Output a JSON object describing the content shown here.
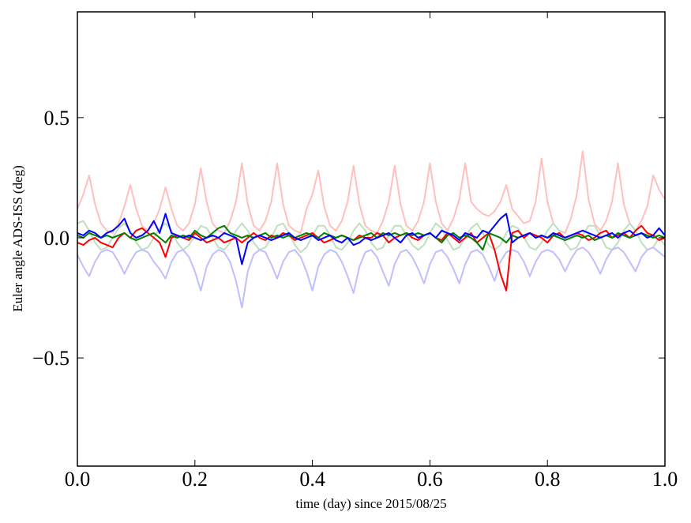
{
  "chart_data": {
    "type": "line",
    "xlabel": "time (day) since 2015/08/25",
    "ylabel": "Euler angle ADS-ISS (deg)",
    "xlim": [
      0,
      1
    ],
    "ylim": [
      -0.95,
      0.94
    ],
    "xticks": [
      {
        "value": 0,
        "label": "0.0"
      },
      {
        "value": 0.2,
        "label": "0.2"
      },
      {
        "value": 0.4,
        "label": "0.4"
      },
      {
        "value": 0.6,
        "label": "0.6"
      },
      {
        "value": 0.8,
        "label": "0.8"
      },
      {
        "value": 1,
        "label": "1.0"
      }
    ],
    "yticks": [
      {
        "value": -0.5,
        "label": "−0.5"
      },
      {
        "value": 0,
        "label": "0.0"
      },
      0.5
    ],
    "x": [
      0,
      0.01,
      0.02,
      0.03,
      0.04,
      0.05,
      0.06,
      0.07,
      0.08,
      0.09,
      0.1,
      0.11,
      0.12,
      0.13,
      0.14,
      0.15,
      0.16,
      0.17,
      0.18,
      0.19,
      0.2,
      0.21,
      0.22,
      0.23,
      0.24,
      0.25,
      0.26,
      0.27,
      0.28,
      0.29,
      0.3,
      0.31,
      0.32,
      0.33,
      0.34,
      0.35,
      0.36,
      0.37,
      0.38,
      0.39,
      0.4,
      0.41,
      0.42,
      0.43,
      0.44,
      0.45,
      0.46,
      0.47,
      0.48,
      0.49,
      0.5,
      0.51,
      0.52,
      0.53,
      0.54,
      0.55,
      0.56,
      0.57,
      0.58,
      0.59,
      0.6,
      0.61,
      0.62,
      0.63,
      0.64,
      0.65,
      0.66,
      0.67,
      0.68,
      0.69,
      0.7,
      0.71,
      0.72,
      0.73,
      0.74,
      0.75,
      0.76,
      0.77,
      0.78,
      0.79,
      0.8,
      0.81,
      0.82,
      0.83,
      0.84,
      0.85,
      0.86,
      0.87,
      0.88,
      0.89,
      0.9,
      0.91,
      0.92,
      0.93,
      0.94,
      0.95,
      0.96,
      0.97,
      0.98,
      0.99,
      1
    ],
    "series": [
      {
        "color": "#ffbfbf",
        "values": [
          0.12,
          0.18,
          0.26,
          0.14,
          0.06,
          0.03,
          0.02,
          0.06,
          0.13,
          0.22,
          0.12,
          0.05,
          0.03,
          0.06,
          0.12,
          0.21,
          0.12,
          0.05,
          0.03,
          0.06,
          0.14,
          0.29,
          0.15,
          0.06,
          0.03,
          0.02,
          0.07,
          0.15,
          0.31,
          0.14,
          0.05,
          0.03,
          0.07,
          0.15,
          0.31,
          0.14,
          0.05,
          0.03,
          0.02,
          0.12,
          0.18,
          0.28,
          0.13,
          0.05,
          0.03,
          0.07,
          0.15,
          0.3,
          0.14,
          0.05,
          0.03,
          0.02,
          0.07,
          0.15,
          0.3,
          0.14,
          0.05,
          0.03,
          0.07,
          0.15,
          0.31,
          0.15,
          0.06,
          0.03,
          0.08,
          0.16,
          0.31,
          0.15,
          0.12,
          0.1,
          0.09,
          0.11,
          0.15,
          0.22,
          0.12,
          0.09,
          0.06,
          0.07,
          0.15,
          0.33,
          0.15,
          0.06,
          0.03,
          0.02,
          0.08,
          0.18,
          0.36,
          0.16,
          0.06,
          0.03,
          0.07,
          0.15,
          0.31,
          0.14,
          0.06,
          0.03,
          0.07,
          0.13,
          0.26,
          0.2,
          0.16
        ]
      },
      {
        "color": "#bfdfbf",
        "values": [
          0.06,
          0.07,
          0.03,
          -0.02,
          -0.05,
          -0.04,
          0.0,
          0.04,
          0.06,
          0.03,
          -0.02,
          -0.05,
          -0.04,
          0.0,
          0.04,
          0.06,
          0.03,
          -0.02,
          -0.05,
          -0.03,
          0.01,
          0.05,
          0.04,
          0.0,
          -0.04,
          -0.05,
          -0.02,
          0.03,
          0.06,
          0.03,
          -0.02,
          -0.05,
          -0.04,
          0.0,
          0.05,
          0.06,
          0.02,
          -0.03,
          -0.06,
          -0.04,
          0.01,
          0.05,
          0.05,
          0.01,
          -0.04,
          -0.05,
          -0.02,
          0.03,
          0.06,
          0.03,
          -0.02,
          -0.05,
          -0.04,
          0.01,
          0.05,
          0.05,
          0.01,
          -0.03,
          -0.05,
          -0.03,
          0.02,
          0.06,
          0.04,
          -0.01,
          -0.05,
          -0.04,
          0.0,
          0.04,
          0.06,
          0.02,
          -0.03,
          -0.05,
          -0.03,
          0.02,
          0.05,
          0.04,
          0.0,
          -0.04,
          -0.05,
          -0.02,
          0.03,
          0.06,
          0.03,
          -0.02,
          -0.05,
          -0.04,
          0.01,
          0.05,
          0.05,
          0.01,
          -0.04,
          -0.05,
          -0.02,
          0.03,
          0.06,
          0.03,
          -0.02,
          -0.05,
          -0.04,
          0.0,
          -0.03
        ]
      },
      {
        "color": "#bfbfff",
        "values": [
          -0.07,
          -0.12,
          -0.16,
          -0.1,
          -0.06,
          -0.05,
          -0.06,
          -0.1,
          -0.15,
          -0.1,
          -0.06,
          -0.05,
          -0.06,
          -0.1,
          -0.13,
          -0.17,
          -0.1,
          -0.06,
          -0.05,
          -0.08,
          -0.14,
          -0.22,
          -0.12,
          -0.07,
          -0.05,
          -0.06,
          -0.1,
          -0.18,
          -0.29,
          -0.14,
          -0.07,
          -0.05,
          -0.06,
          -0.11,
          -0.17,
          -0.1,
          -0.06,
          -0.05,
          -0.08,
          -0.14,
          -0.22,
          -0.12,
          -0.07,
          -0.05,
          -0.06,
          -0.1,
          -0.16,
          -0.23,
          -0.12,
          -0.06,
          -0.05,
          -0.08,
          -0.14,
          -0.2,
          -0.11,
          -0.06,
          -0.05,
          -0.08,
          -0.13,
          -0.19,
          -0.11,
          -0.06,
          -0.05,
          -0.08,
          -0.13,
          -0.19,
          -0.11,
          -0.06,
          -0.05,
          -0.07,
          -0.12,
          -0.18,
          -0.1,
          -0.06,
          -0.05,
          -0.06,
          -0.1,
          -0.16,
          -0.1,
          -0.06,
          -0.05,
          -0.06,
          -0.09,
          -0.14,
          -0.09,
          -0.05,
          -0.04,
          -0.06,
          -0.1,
          -0.15,
          -0.09,
          -0.05,
          -0.04,
          -0.06,
          -0.1,
          -0.14,
          -0.08,
          -0.05,
          -0.04,
          -0.06,
          -0.08
        ]
      },
      {
        "color": "#ff0000",
        "values": [
          -0.02,
          -0.03,
          -0.01,
          0.0,
          -0.02,
          -0.03,
          -0.04,
          0.0,
          0.02,
          0.0,
          0.03,
          0.04,
          0.02,
          0.0,
          -0.02,
          -0.08,
          0.0,
          0.01,
          0.0,
          -0.01,
          0.02,
          0.0,
          -0.02,
          -0.01,
          0.0,
          -0.02,
          -0.01,
          0.0,
          -0.02,
          0.0,
          0.02,
          0.0,
          -0.01,
          0.01,
          0.0,
          0.02,
          0.01,
          -0.01,
          0.0,
          0.01,
          0.02,
          0.0,
          -0.02,
          -0.01,
          0.0,
          0.01,
          0.0,
          -0.01,
          0.01,
          0.0,
          0.0,
          0.02,
          0.01,
          -0.02,
          0.0,
          0.01,
          0.02,
          0.0,
          -0.01,
          0.01,
          0.02,
          0.0,
          -0.01,
          0.02,
          0.0,
          -0.02,
          0.0,
          0.02,
          -0.02,
          0.0,
          0.02,
          -0.05,
          -0.15,
          -0.22,
          0.02,
          0.03,
          0.0,
          0.02,
          0.01,
          0.0,
          -0.02,
          0.01,
          0.02,
          0.0,
          0.01,
          0.02,
          0.01,
          -0.01,
          0.0,
          0.02,
          0.03,
          0.0,
          0.01,
          0.02,
          0.0,
          0.03,
          0.05,
          0.02,
          0.01,
          -0.01,
          0.0
        ]
      },
      {
        "color": "#008000",
        "values": [
          0.01,
          0.0,
          0.02,
          0.01,
          0.0,
          0.01,
          0.0,
          0.01,
          0.02,
          0.0,
          -0.01,
          0.0,
          0.01,
          0.02,
          0.0,
          -0.02,
          0.01,
          0.0,
          0.01,
          0.0,
          0.03,
          0.01,
          0.0,
          0.02,
          0.04,
          0.05,
          0.02,
          0.01,
          0.0,
          0.01,
          0.0,
          0.01,
          0.02,
          0.0,
          0.01,
          0.0,
          0.01,
          0.0,
          0.01,
          0.02,
          0.01,
          0.0,
          0.02,
          0.01,
          0.0,
          0.01,
          0.0,
          -0.01,
          0.0,
          0.01,
          0.02,
          0.0,
          0.02,
          0.01,
          0.02,
          0.01,
          0.02,
          0.01,
          0.02,
          0.01,
          0.02,
          0.0,
          -0.02,
          0.01,
          0.02,
          0.0,
          0.01,
          0.0,
          -0.02,
          -0.05,
          0.02,
          0.01,
          0.0,
          -0.02,
          0.01,
          0.0,
          0.01,
          0.02,
          0.0,
          0.01,
          0.0,
          0.01,
          0.0,
          -0.01,
          0.0,
          0.01,
          0.0,
          0.01,
          -0.01,
          0.0,
          0.01,
          0.0,
          0.02,
          0.01,
          0.0,
          0.01,
          0.02,
          0.01,
          0.0,
          0.01,
          0.0
        ]
      },
      {
        "color": "#0000ff",
        "values": [
          0.02,
          0.01,
          0.03,
          0.02,
          0.0,
          0.02,
          0.03,
          0.05,
          0.08,
          0.02,
          0.0,
          0.01,
          0.03,
          0.07,
          0.02,
          0.1,
          0.02,
          0.01,
          0.0,
          0.01,
          0.0,
          -0.01,
          0.0,
          0.01,
          0.0,
          0.02,
          0.01,
          0.0,
          -0.11,
          -0.02,
          0.0,
          0.01,
          0.0,
          -0.01,
          0.0,
          0.01,
          0.02,
          0.0,
          -0.01,
          0.0,
          0.01,
          -0.01,
          0.0,
          0.01,
          -0.01,
          -0.02,
          0.0,
          -0.03,
          -0.02,
          0.0,
          -0.01,
          0.0,
          0.01,
          0.02,
          0.0,
          -0.02,
          0.01,
          0.02,
          0.0,
          0.01,
          0.02,
          0.0,
          0.03,
          0.02,
          0.01,
          -0.01,
          0.02,
          0.01,
          0.0,
          0.03,
          0.02,
          0.05,
          0.08,
          0.1,
          -0.02,
          0.0,
          0.01,
          0.02,
          0.0,
          0.01,
          0.0,
          0.02,
          0.01,
          0.0,
          0.01,
          0.02,
          0.03,
          0.02,
          0.01,
          0.0,
          0.01,
          0.02,
          0.0,
          0.02,
          0.03,
          0.01,
          0.02,
          0.0,
          0.01,
          0.04,
          0.01
        ]
      }
    ]
  }
}
